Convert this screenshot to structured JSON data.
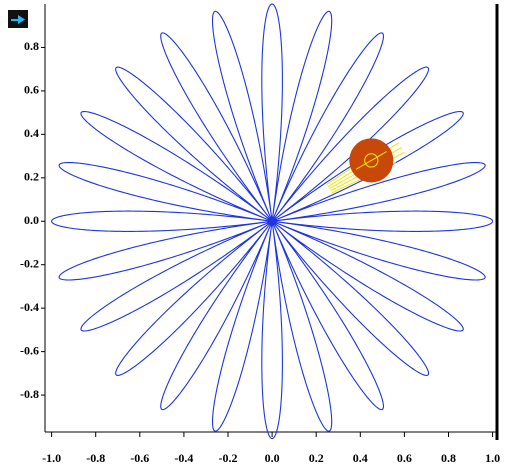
{
  "chart_data": {
    "type": "rose",
    "petals": 24,
    "radius": 1.0,
    "color": "#1f35e0",
    "xlim": [
      -1.03,
      1.02
    ],
    "ylim": [
      -0.97,
      1.0
    ],
    "xticks": [
      {
        "value": -1.0,
        "label": "-1.0"
      },
      -0.8,
      -0.6,
      -0.4,
      -0.2,
      {
        "value": 0,
        "label": "0.0"
      },
      0.2,
      0.4,
      0.6,
      0.8,
      {
        "value": 1.0,
        "label": "1.0"
      }
    ],
    "yticks": [
      0.8,
      0.6,
      0.4,
      0.2,
      {
        "value": 0,
        "label": "0.0"
      },
      -0.2,
      -0.4,
      -0.6,
      -0.8
    ],
    "trail": {
      "angle": 30,
      "r_from": 0.3,
      "r_to": 0.68,
      "color": "#f2e600"
    },
    "marker": {
      "x": 0.45,
      "y": 0.28,
      "r": 0.1,
      "inner_r": 0.03,
      "color": "#c8480a"
    }
  }
}
